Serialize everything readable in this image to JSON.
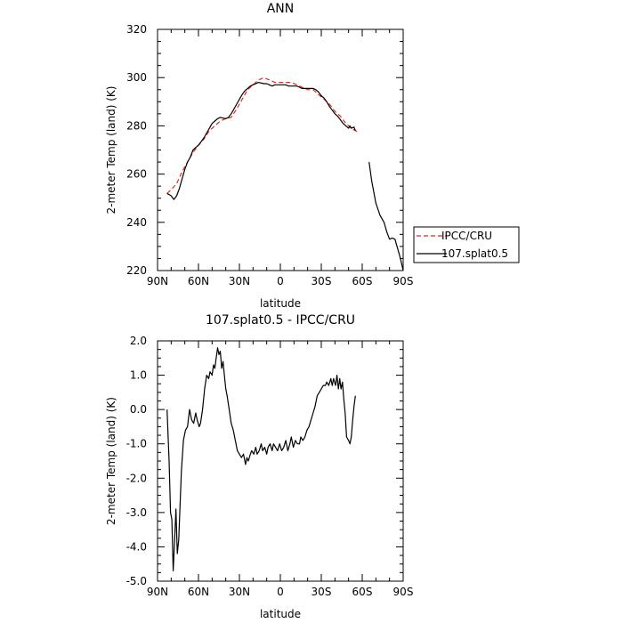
{
  "chart_data": [
    {
      "type": "line",
      "title": "ANN",
      "xlabel": "latitude",
      "ylabel": "2-meter Temp (land) (K)",
      "xlim": [
        90,
        -90
      ],
      "ylim": [
        220,
        320
      ],
      "x_ticks": [
        90,
        60,
        30,
        0,
        -30,
        -60,
        -90
      ],
      "x_tick_labels": [
        "90N",
        "60N",
        "30N",
        "0",
        "30S",
        "60S",
        "90S"
      ],
      "y_ticks": [
        220,
        240,
        260,
        280,
        300,
        320
      ],
      "y_tick_labels": [
        "220",
        "240",
        "260",
        "280",
        "300",
        "320"
      ],
      "grid": false,
      "legend_position": "outside-right",
      "legend": [
        "IPCC/CRU",
        "107.splat0.5"
      ],
      "series": [
        {
          "name": "IPCC/CRU",
          "color": "#e8281f",
          "dash": true,
          "points": [
            [
              83,
              252
            ],
            [
              80,
              253.5
            ],
            [
              76,
              256
            ],
            [
              72,
              261
            ],
            [
              68,
              265
            ],
            [
              64,
              269
            ],
            [
              60,
              272
            ],
            [
              56,
              274.5
            ],
            [
              52,
              278
            ],
            [
              48,
              280
            ],
            [
              44,
              282
            ],
            [
              40,
              283
            ],
            [
              36,
              283.5
            ],
            [
              32,
              287
            ],
            [
              28,
              291
            ],
            [
              24,
              295
            ],
            [
              20,
              297
            ],
            [
              16,
              299
            ],
            [
              12,
              300
            ],
            [
              8,
              299
            ],
            [
              4,
              298
            ],
            [
              0,
              298
            ],
            [
              -4,
              298
            ],
            [
              -8,
              298
            ],
            [
              -12,
              297
            ],
            [
              -16,
              296
            ],
            [
              -20,
              295
            ],
            [
              -24,
              295
            ],
            [
              -28,
              293
            ],
            [
              -32,
              291
            ],
            [
              -36,
              289
            ],
            [
              -40,
              286
            ],
            [
              -44,
              284
            ],
            [
              -48,
              281
            ],
            [
              -52,
              279
            ],
            [
              -55,
              278
            ],
            [
              -57,
              277.5
            ]
          ]
        },
        {
          "name": "107.splat0.5",
          "color": "#000000",
          "dash": false,
          "segments": [
            [
              [
                83,
                252
              ],
              [
                80,
                251
              ],
              [
                78,
                249.5
              ],
              [
                76,
                251
              ],
              [
                74,
                254
              ],
              [
                72,
                258
              ],
              [
                70,
                262
              ],
              [
                68,
                265
              ],
              [
                66,
                267
              ],
              [
                64,
                270
              ],
              [
                62,
                271
              ],
              [
                60,
                272
              ],
              [
                58,
                273.5
              ],
              [
                56,
                275
              ],
              [
                54,
                277
              ],
              [
                52,
                279
              ],
              [
                50,
                281
              ],
              [
                48,
                282
              ],
              [
                46,
                283
              ],
              [
                44,
                283.5
              ],
              [
                40,
                283
              ],
              [
                38,
                283.5
              ],
              [
                36,
                285
              ],
              [
                34,
                287
              ],
              [
                32,
                289
              ],
              [
                30,
                291
              ],
              [
                28,
                293
              ],
              [
                26,
                294.5
              ],
              [
                24,
                295.5
              ],
              [
                22,
                296.5
              ],
              [
                20,
                297
              ],
              [
                18,
                297.5
              ],
              [
                16,
                298
              ],
              [
                12,
                297.5
              ],
              [
                10,
                297.5
              ],
              [
                8,
                297
              ],
              [
                6,
                296.5
              ],
              [
                4,
                297
              ],
              [
                2,
                297
              ],
              [
                0,
                297
              ],
              [
                -2,
                297
              ],
              [
                -4,
                297
              ],
              [
                -6,
                296.5
              ],
              [
                -8,
                296.5
              ],
              [
                -10,
                296.5
              ],
              [
                -12,
                296.5
              ],
              [
                -14,
                296
              ],
              [
                -16,
                295.5
              ],
              [
                -18,
                295.5
              ],
              [
                -20,
                295.5
              ],
              [
                -22,
                295.5
              ],
              [
                -24,
                295.5
              ],
              [
                -26,
                295
              ],
              [
                -28,
                294
              ],
              [
                -30,
                292.5
              ],
              [
                -32,
                291.5
              ],
              [
                -34,
                290
              ],
              [
                -36,
                288
              ],
              [
                -38,
                286.5
              ],
              [
                -40,
                285
              ],
              [
                -42,
                284
              ],
              [
                -44,
                282.5
              ],
              [
                -46,
                281
              ],
              [
                -48,
                280
              ],
              [
                -50,
                279
              ],
              [
                -51,
                280
              ],
              [
                -52,
                279
              ],
              [
                -54,
                279.5
              ],
              [
                -55,
                278
              ]
            ],
            [
              [
                -65,
                265
              ],
              [
                -67,
                257
              ],
              [
                -70,
                248
              ],
              [
                -73,
                243
              ],
              [
                -76,
                240
              ],
              [
                -78,
                236
              ],
              [
                -80,
                233
              ],
              [
                -82,
                233.5
              ],
              [
                -84,
                233
              ],
              [
                -85,
                231
              ],
              [
                -86,
                229
              ],
              [
                -88,
                225
              ],
              [
                -90,
                220
              ]
            ]
          ]
        }
      ]
    },
    {
      "type": "line",
      "title": "107.splat0.5 - IPCC/CRU",
      "xlabel": "latitude",
      "ylabel": "2-meter Temp (land) (K)",
      "xlim": [
        90,
        -90
      ],
      "ylim": [
        -5.0,
        2.0
      ],
      "x_ticks": [
        90,
        60,
        30,
        0,
        -30,
        -60,
        -90
      ],
      "x_tick_labels": [
        "90N",
        "60N",
        "30N",
        "0",
        "30S",
        "60S",
        "90S"
      ],
      "y_ticks": [
        -5,
        -4,
        -3,
        -2,
        -1,
        0,
        1,
        2
      ],
      "y_tick_labels": [
        "-5.0",
        "-4.0",
        "-3.0",
        "-2.0",
        "-1.0",
        "0.0",
        "1.0",
        "2.0"
      ],
      "grid": false,
      "series": [
        {
          "color": "#000000",
          "points": [
            [
              83,
              0.0
            ],
            [
              81.5,
              -1.5
            ],
            [
              80.5,
              -3.0
            ],
            [
              79.5,
              -3.2
            ],
            [
              78.5,
              -4.7
            ],
            [
              77.5,
              -3.8
            ],
            [
              76.5,
              -2.9
            ],
            [
              75.5,
              -4.2
            ],
            [
              74.5,
              -3.8
            ],
            [
              73.5,
              -2.8
            ],
            [
              72.5,
              -1.8
            ],
            [
              71,
              -0.9
            ],
            [
              69.5,
              -0.6
            ],
            [
              68,
              -0.5
            ],
            [
              66.5,
              0.0
            ],
            [
              65,
              -0.3
            ],
            [
              63.5,
              -0.4
            ],
            [
              62,
              -0.1
            ],
            [
              61,
              -0.3
            ],
            [
              59.5,
              -0.5
            ],
            [
              58.5,
              -0.4
            ],
            [
              57,
              0.0
            ],
            [
              55.5,
              0.6
            ],
            [
              54,
              1.0
            ],
            [
              52.5,
              0.9
            ],
            [
              51.5,
              1.1
            ],
            [
              50,
              1.0
            ],
            [
              49,
              1.3
            ],
            [
              48,
              1.2
            ],
            [
              47,
              1.5
            ],
            [
              46,
              1.8
            ],
            [
              45,
              1.6
            ],
            [
              44,
              1.7
            ],
            [
              43,
              1.2
            ],
            [
              42,
              1.4
            ],
            [
              41,
              1.0
            ],
            [
              40,
              0.6
            ],
            [
              39,
              0.4
            ],
            [
              37.5,
              0.0
            ],
            [
              36,
              -0.4
            ],
            [
              34.5,
              -0.6
            ],
            [
              33,
              -0.9
            ],
            [
              31.5,
              -1.2
            ],
            [
              30,
              -1.3
            ],
            [
              28.5,
              -1.4
            ],
            [
              27,
              -1.3
            ],
            [
              25.5,
              -1.6
            ],
            [
              24.5,
              -1.4
            ],
            [
              23.5,
              -1.5
            ],
            [
              22,
              -1.3
            ],
            [
              21,
              -1.2
            ],
            [
              19.5,
              -1.3
            ],
            [
              18,
              -1.1
            ],
            [
              17,
              -1.3
            ],
            [
              15.5,
              -1.2
            ],
            [
              14,
              -1.0
            ],
            [
              13,
              -1.2
            ],
            [
              11.5,
              -1.1
            ],
            [
              10,
              -1.3
            ],
            [
              9,
              -1.1
            ],
            [
              7.5,
              -1.0
            ],
            [
              6,
              -1.2
            ],
            [
              5,
              -1.0
            ],
            [
              3.5,
              -1.1
            ],
            [
              2,
              -1.2
            ],
            [
              0.5,
              -1.0
            ],
            [
              -1,
              -1.2
            ],
            [
              -2.5,
              -1.1
            ],
            [
              -4,
              -0.9
            ],
            [
              -5.5,
              -1.2
            ],
            [
              -7,
              -1.0
            ],
            [
              -8,
              -0.8
            ],
            [
              -9.5,
              -1.1
            ],
            [
              -11,
              -0.9
            ],
            [
              -12.5,
              -1.0
            ],
            [
              -14,
              -1.0
            ],
            [
              -15,
              -0.8
            ],
            [
              -16.5,
              -0.9
            ],
            [
              -18,
              -0.8
            ],
            [
              -19.5,
              -0.6
            ],
            [
              -21,
              -0.5
            ],
            [
              -22.5,
              -0.3
            ],
            [
              -24,
              -0.1
            ],
            [
              -25.5,
              0.1
            ],
            [
              -27,
              0.4
            ],
            [
              -28.5,
              0.5
            ],
            [
              -30,
              0.6
            ],
            [
              -31.5,
              0.7
            ],
            [
              -33,
              0.7
            ],
            [
              -34,
              0.8
            ],
            [
              -35.5,
              0.7
            ],
            [
              -37,
              0.9
            ],
            [
              -38,
              0.7
            ],
            [
              -39,
              0.9
            ],
            [
              -40.5,
              0.7
            ],
            [
              -41.5,
              1.0
            ],
            [
              -42.5,
              0.6
            ],
            [
              -43.5,
              0.9
            ],
            [
              -44.5,
              0.6
            ],
            [
              -45.5,
              0.8
            ],
            [
              -46.5,
              0.3
            ],
            [
              -47.5,
              -0.1
            ],
            [
              -48.5,
              -0.8
            ],
            [
              -50,
              -0.9
            ],
            [
              -51,
              -1.0
            ],
            [
              -52,
              -0.8
            ],
            [
              -53,
              -0.3
            ],
            [
              -54,
              0.1
            ],
            [
              -55,
              0.4
            ]
          ]
        }
      ]
    }
  ]
}
